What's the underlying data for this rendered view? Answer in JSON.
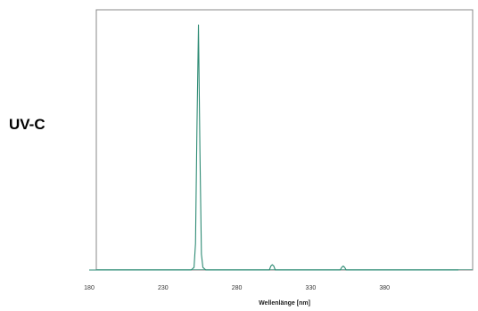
{
  "side_label": "UV-C",
  "chart_data": {
    "type": "line",
    "title": "",
    "xlabel": "Wellenlänge [nm]",
    "ylabel": "",
    "xlim": [
      180,
      430
    ],
    "ylim": [
      0,
      100
    ],
    "xticks": [
      180,
      230,
      280,
      330,
      380
    ],
    "grid": false,
    "legend": "none",
    "series": [
      {
        "color": "#2e8b74",
        "x": [
          180,
          243,
          249,
          251,
          252,
          253,
          254,
          255,
          256,
          257,
          259,
          265,
          302,
          303,
          304,
          305,
          306,
          350,
          351,
          352,
          353,
          354,
          430
        ],
        "y": [
          0,
          0,
          0,
          1,
          10,
          55,
          93,
          45,
          6,
          1,
          0,
          0,
          0,
          1.5,
          2,
          1.5,
          0,
          0,
          1,
          1.5,
          1,
          0,
          0
        ]
      }
    ]
  }
}
